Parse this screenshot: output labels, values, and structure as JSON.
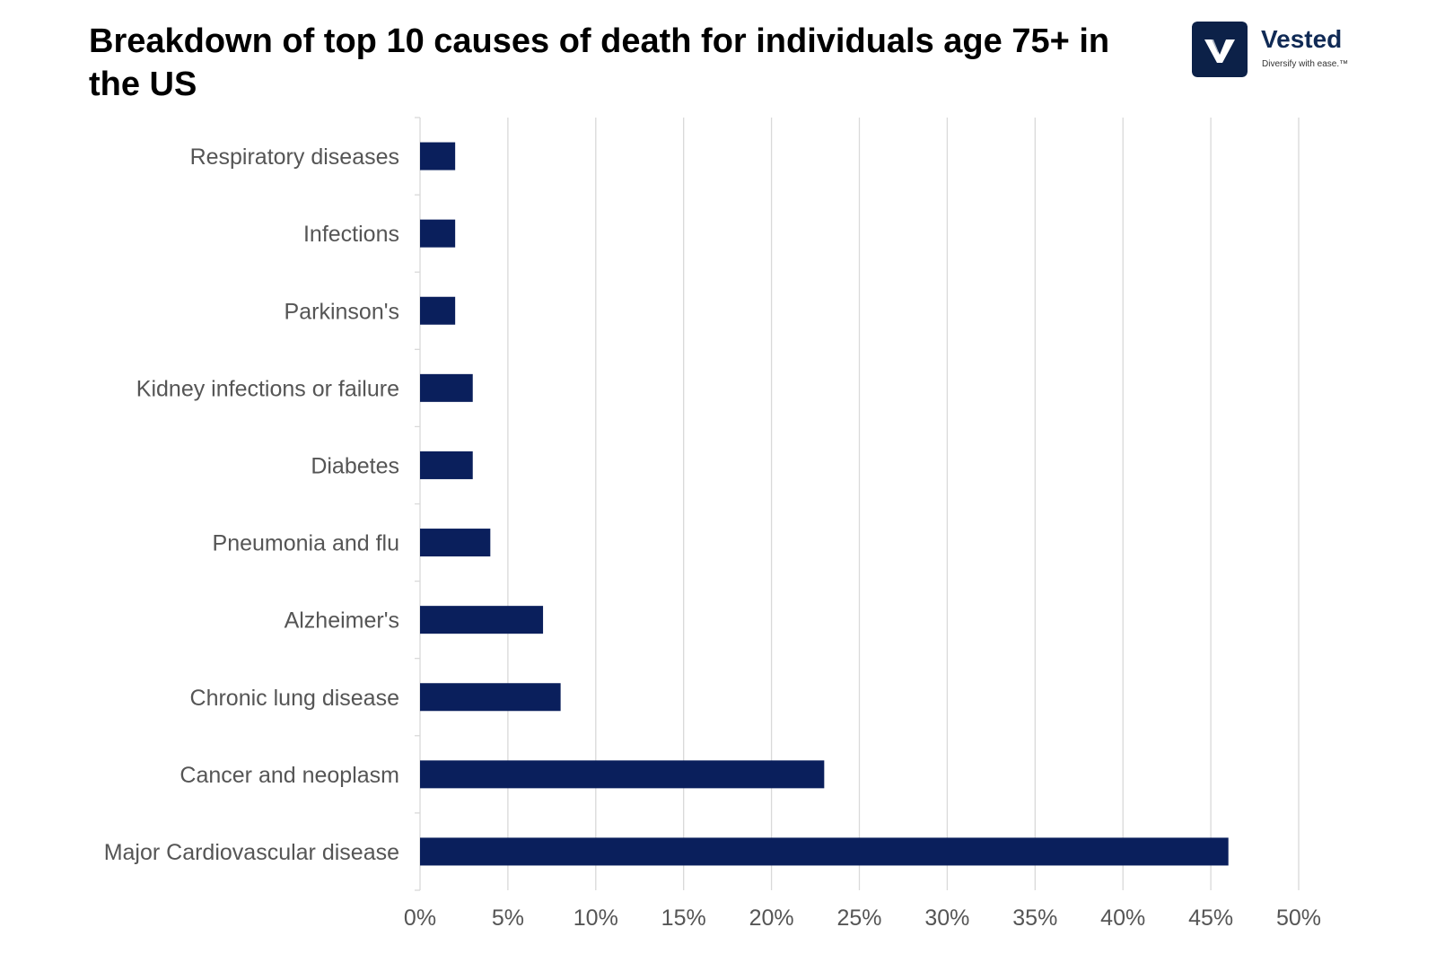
{
  "title": "Breakdown of top 10 causes of death for individuals age 75+ in the US",
  "logo": {
    "name": "Vested",
    "tagline": "Diversify with ease.™",
    "icon": "vested-v-logo-icon",
    "brand_color": "#102a55",
    "mark_color": "#0c2148"
  },
  "colors": {
    "bar": "#0a1f5c",
    "grid": "#d9d9d9",
    "text": "#555555"
  },
  "chart_data": {
    "type": "bar",
    "orientation": "horizontal",
    "title": "Breakdown of top 10 causes of death for individuals age 75+ in the US",
    "categories": [
      "Respiratory diseases",
      "Infections",
      "Parkinson's",
      "Kidney infections or failure",
      "Diabetes",
      "Pneumonia and flu",
      "Alzheimer's",
      "Chronic lung disease",
      "Cancer and neoplasm",
      "Major Cardiovascular disease"
    ],
    "values": [
      2,
      2,
      2,
      3,
      3,
      4,
      7,
      8,
      23,
      46
    ],
    "value_unit": "%",
    "xlim": [
      0,
      50
    ],
    "xticks": [
      "0%",
      "5%",
      "10%",
      "15%",
      "20%",
      "25%",
      "30%",
      "35%",
      "40%",
      "45%",
      "50%"
    ],
    "xlabel": "",
    "ylabel": "",
    "grid": "vertical",
    "legend": "none"
  }
}
